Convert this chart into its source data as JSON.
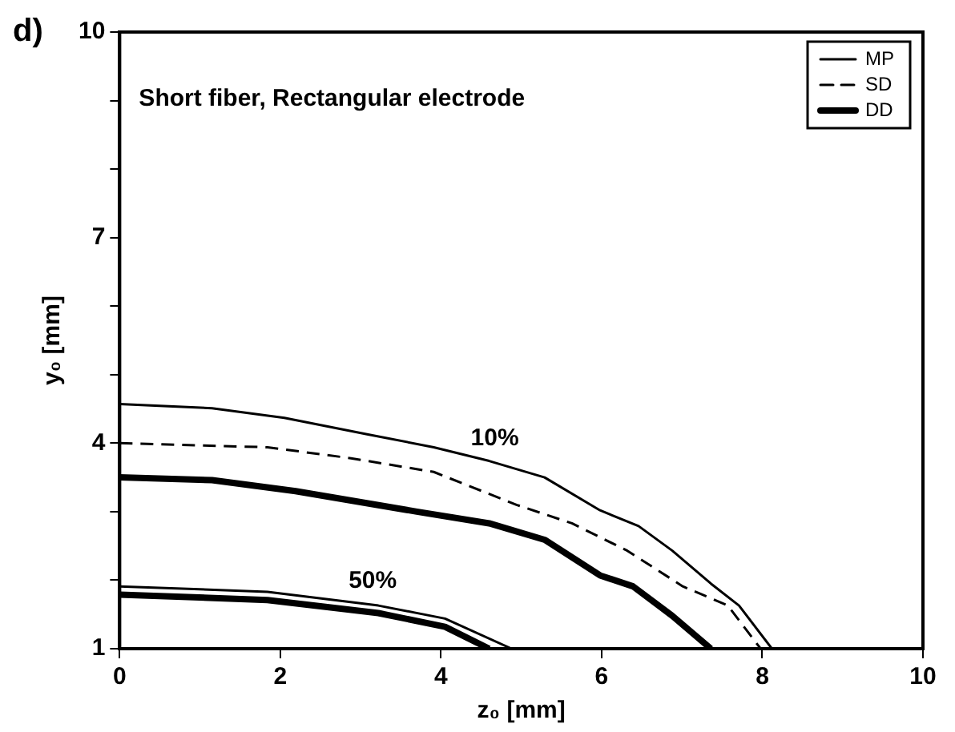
{
  "chart_data": {
    "type": "line",
    "xlabel": "z₀ [mm]",
    "ylabel": "y₀ [mm]",
    "xlim": [
      0,
      10
    ],
    "xticks": [
      0,
      2,
      4,
      6,
      8,
      10
    ],
    "ylim": [
      1,
      10
    ],
    "yticks": [
      1,
      {
        "value": 2,
        "label": null
      },
      {
        "value": 3,
        "label": null
      },
      4,
      {
        "value": 5,
        "label": null
      },
      {
        "value": 6,
        "label": null
      },
      7,
      {
        "value": 8,
        "label": null
      },
      {
        "value": 9,
        "label": null
      },
      10
    ],
    "grid": false,
    "legend": "top right",
    "marker": "none",
    "series": [
      {
        "name": "MP",
        "color": "#000000",
        "line_style": "solid",
        "x": [
          0,
          1.15,
          2.05,
          3.08,
          3.91,
          4.6,
          5.29,
          5.98,
          6.46,
          6.88,
          7.36,
          7.71,
          8.12
        ],
        "values": [
          4.57,
          4.51,
          4.37,
          4.13,
          3.94,
          3.74,
          3.5,
          3.02,
          2.79,
          2.43,
          1.95,
          1.63,
          1.0
        ]
      },
      {
        "name": "SD",
        "color": "#000000",
        "line_style": "dashed",
        "x": [
          0,
          1.84,
          2.88,
          3.91,
          4.94,
          5.63,
          6.32,
          7.01,
          7.57,
          7.98
        ],
        "values": [
          4.0,
          3.94,
          3.78,
          3.58,
          3.1,
          2.83,
          2.43,
          1.91,
          1.63,
          1.0
        ]
      },
      {
        "name": "DD",
        "color": "#000000",
        "line_style": "solid",
        "x": [
          0,
          1.15,
          2.19,
          3.7,
          4.6,
          5.29,
          5.98,
          6.39,
          6.88,
          7.36
        ],
        "values": [
          3.5,
          3.46,
          3.3,
          3.0,
          2.83,
          2.59,
          2.07,
          1.91,
          1.48,
          1.0
        ]
      },
      {
        "color": "#000000",
        "line_style": "solid",
        "x": [
          0,
          1.84,
          3.22,
          4.05,
          4.88
        ],
        "values": [
          1.91,
          1.83,
          1.63,
          1.44,
          1.0
        ]
      },
      {
        "color": "#000000",
        "line_style": "solid",
        "x": [
          0,
          1.84,
          3.22,
          4.05,
          4.6
        ],
        "values": [
          1.79,
          1.71,
          1.52,
          1.32,
          1.0
        ]
      }
    ],
    "annotations": [
      "d)",
      "Short fiber, Rectangular electrode",
      "10%",
      "50%"
    ]
  }
}
